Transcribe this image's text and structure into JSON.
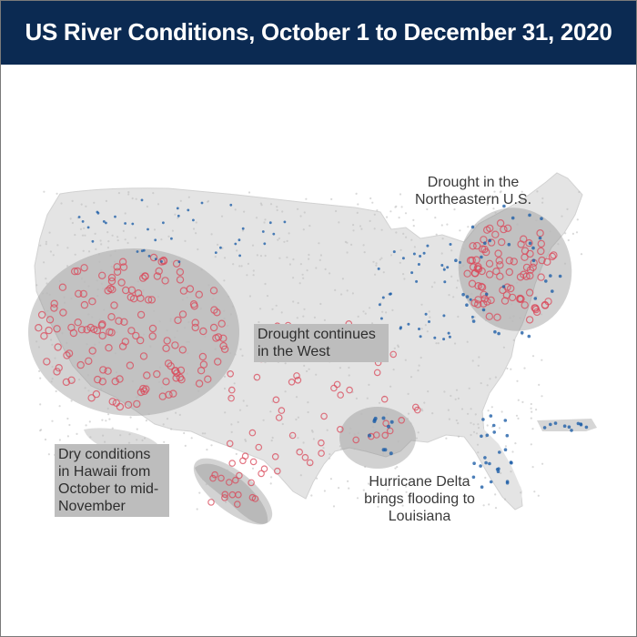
{
  "title": "US River Conditions, October 1 to December 31, 2020",
  "colors": {
    "title_bg": "#0b2a52",
    "land": "#e6e6e6",
    "drought_marker": "#d9485a",
    "flood_marker": "#1f5fa8",
    "normal_marker": "#b9b9b9",
    "highlight_ellipse": "#8c8c8c"
  },
  "annotations": {
    "west": "Drought continues in the West",
    "northeast": "Drought in the Northeastern U.S.",
    "hawaii": "Dry conditions in Hawaii from October to mid-November",
    "louisiana": "Hurricane Delta brings flooding to Louisiana"
  }
}
